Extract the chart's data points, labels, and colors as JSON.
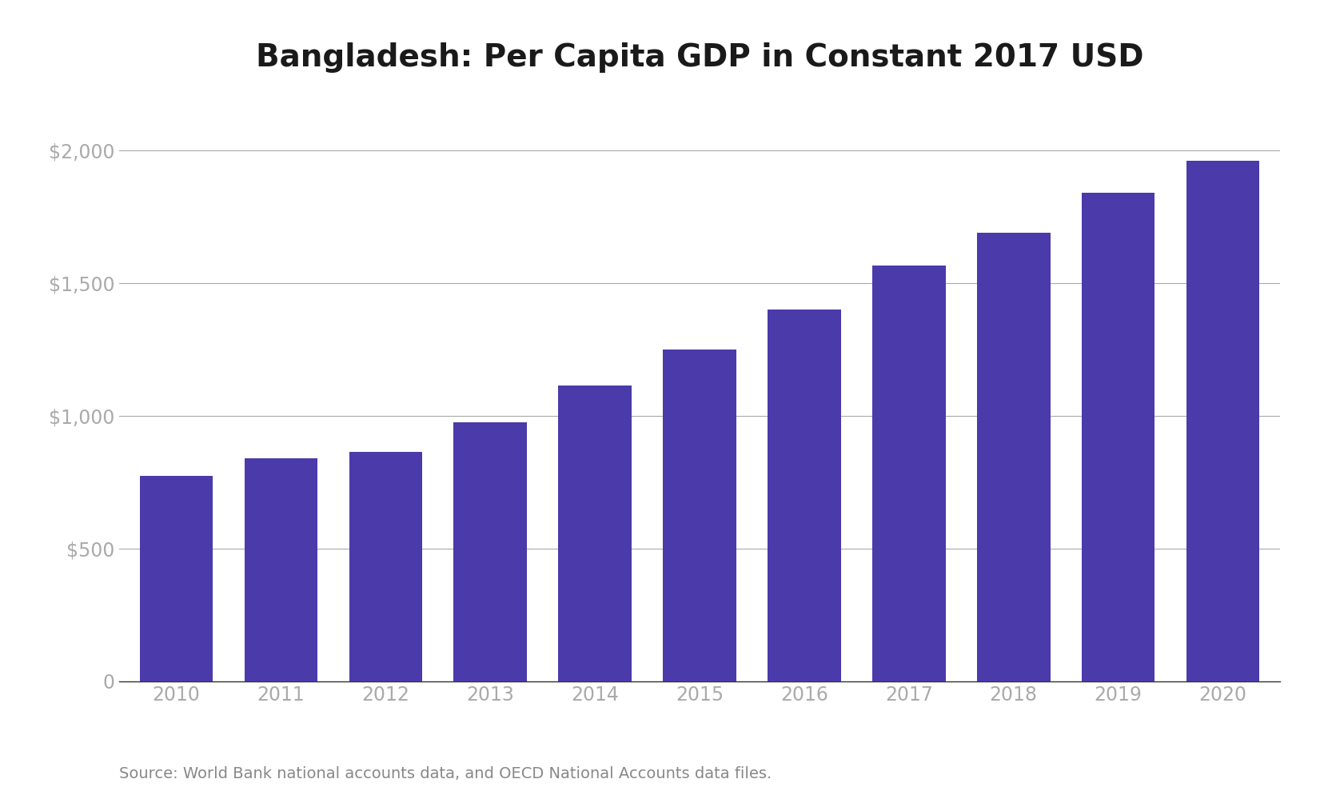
{
  "title": "Bangladesh: Per Capita GDP in Constant 2017 USD",
  "years": [
    2010,
    2011,
    2012,
    2013,
    2014,
    2015,
    2016,
    2017,
    2018,
    2019,
    2020
  ],
  "values": [
    775,
    840,
    865,
    975,
    1115,
    1250,
    1400,
    1565,
    1690,
    1840,
    1960
  ],
  "bar_color": "#4a3aaa",
  "background_color": "#ffffff",
  "ylim": [
    0,
    2200
  ],
  "yticks": [
    0,
    500,
    1000,
    1500,
    2000
  ],
  "source_text": "Source: World Bank national accounts data, and OECD National Accounts data files.",
  "title_fontsize": 28,
  "tick_fontsize": 17,
  "source_fontsize": 14,
  "grid_color": "#aaaaaa",
  "tick_color": "#aaaaaa"
}
